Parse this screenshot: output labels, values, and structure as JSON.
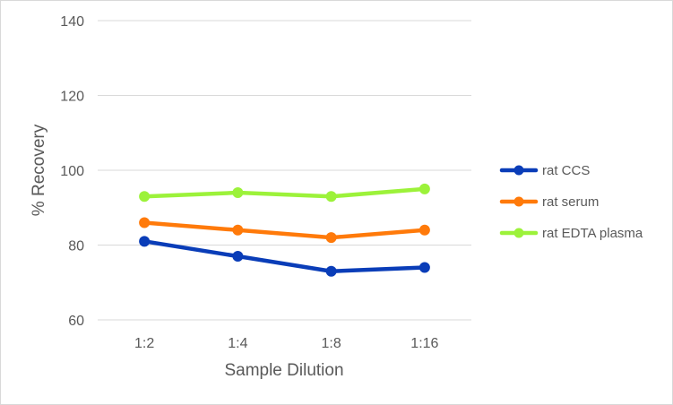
{
  "chart_data": {
    "type": "line",
    "title": "",
    "xlabel": "Sample Dilution",
    "ylabel": "% Recovery",
    "categories": [
      "1:2",
      "1:4",
      "1:8",
      "1:16"
    ],
    "ylim": [
      60,
      140
    ],
    "yticks": [
      60,
      80,
      100,
      120,
      140
    ],
    "grid": true,
    "legend_position": "right",
    "series": [
      {
        "name": "rat CCS",
        "color": "#0a3db8",
        "values": [
          81,
          77,
          73,
          74
        ]
      },
      {
        "name": "rat serum",
        "color": "#ff7a0a",
        "values": [
          86,
          84,
          82,
          84
        ]
      },
      {
        "name": "rat EDTA plasma",
        "color": "#9cf23a",
        "values": [
          93,
          94,
          93,
          95
        ]
      }
    ]
  }
}
